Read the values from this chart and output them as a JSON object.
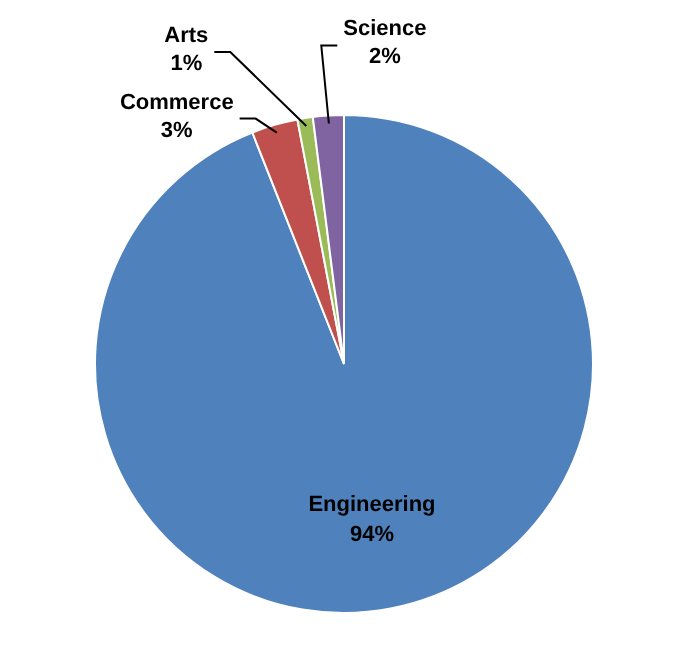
{
  "chart_data": {
    "type": "pie",
    "categories": [
      "Engineering",
      "Commerce",
      "Arts",
      "Science"
    ],
    "values": [
      94,
      3,
      1,
      2
    ],
    "value_labels": [
      "94%",
      "3%",
      "1%",
      "2%"
    ],
    "colors": [
      "#4f81bd",
      "#c0504d",
      "#9bbb59",
      "#8064a2"
    ],
    "legend": false
  }
}
